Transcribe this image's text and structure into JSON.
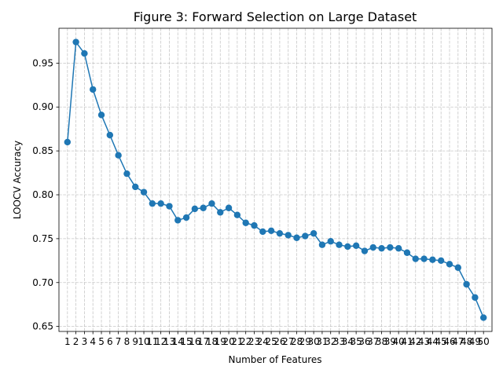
{
  "chart_data": {
    "type": "line",
    "title": "Figure 3: Forward Selection on Large Dataset",
    "xlabel": "Number of Features",
    "ylabel": "LOOCV Accuracy",
    "x": [
      1,
      2,
      3,
      4,
      5,
      6,
      7,
      8,
      9,
      10,
      11,
      12,
      13,
      14,
      15,
      16,
      17,
      18,
      19,
      20,
      21,
      22,
      23,
      24,
      25,
      26,
      27,
      28,
      29,
      30,
      31,
      32,
      33,
      34,
      35,
      36,
      37,
      38,
      39,
      40,
      41,
      42,
      43,
      44,
      45,
      46,
      47,
      48,
      49,
      50
    ],
    "x_tick_labels": [
      "1",
      "2",
      "3",
      "4",
      "5",
      "6",
      "7",
      "8",
      "9",
      "10",
      "11",
      "12",
      "13",
      "14",
      "15",
      "16",
      "17",
      "18",
      "19",
      "20",
      "21",
      "22",
      "23",
      "24",
      "25",
      "26",
      "27",
      "28",
      "29",
      "30",
      "31",
      "32",
      "33",
      "34",
      "35",
      "36",
      "37",
      "38",
      "39",
      "40",
      "41",
      "42",
      "43",
      "44",
      "45",
      "46",
      "47",
      "48",
      "49",
      "50"
    ],
    "series": [
      {
        "values": [
          0.86,
          0.974,
          0.961,
          0.92,
          0.891,
          0.868,
          0.845,
          0.824,
          0.809,
          0.803,
          0.79,
          0.79,
          0.787,
          0.771,
          0.774,
          0.784,
          0.785,
          0.79,
          0.78,
          0.785,
          0.777,
          0.768,
          0.765,
          0.758,
          0.759,
          0.756,
          0.754,
          0.751,
          0.753,
          0.756,
          0.743,
          0.747,
          0.743,
          0.741,
          0.742,
          0.736,
          0.74,
          0.739,
          0.74,
          0.739,
          0.734,
          0.727,
          0.727,
          0.726,
          0.725,
          0.721,
          0.717,
          0.698,
          0.683,
          0.66
        ],
        "color": "#1f77b4",
        "marker": "circle"
      }
    ],
    "xlim": [
      0,
      51
    ],
    "ylim": [
      0.6443,
      0.9897
    ],
    "y_ticks": [
      0.65,
      0.7,
      0.75,
      0.8,
      0.85,
      0.9,
      0.95
    ],
    "y_tick_labels": [
      "0.65",
      "0.70",
      "0.75",
      "0.80",
      "0.85",
      "0.90",
      "0.95"
    ],
    "grid": true,
    "grid_style": "dashed"
  }
}
